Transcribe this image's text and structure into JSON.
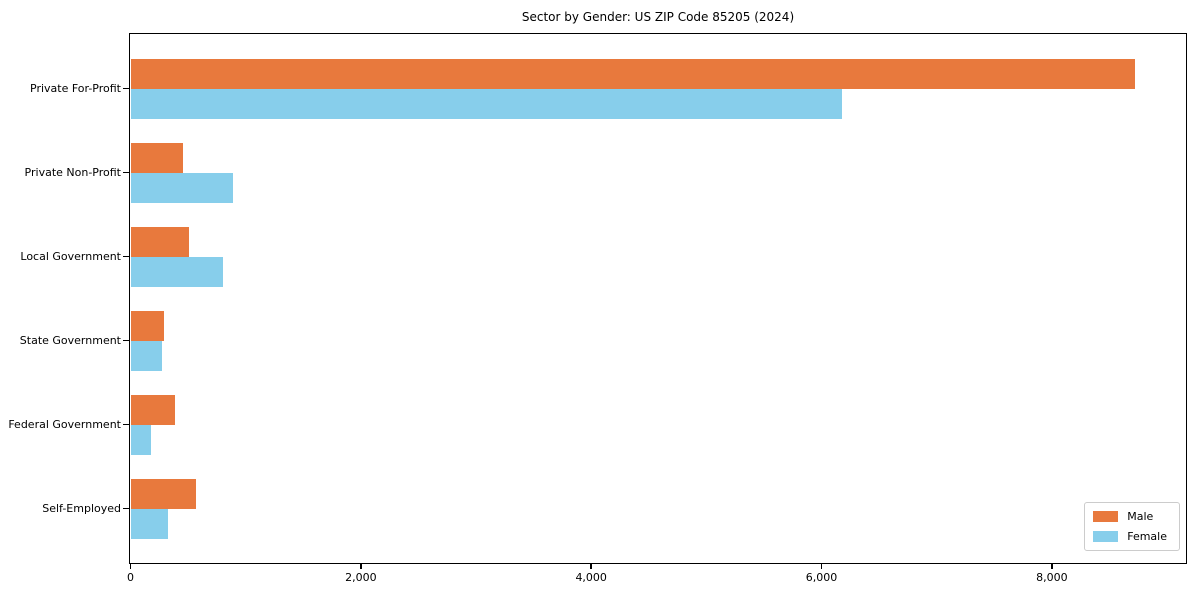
{
  "chart_data": {
    "type": "bar",
    "orientation": "horizontal",
    "title": "Sector by Gender: US ZIP Code 85205 (2024)",
    "categories": [
      "Private For-Profit",
      "Private Non-Profit",
      "Local Government",
      "State Government",
      "Federal Government",
      "Self-Employed"
    ],
    "series": [
      {
        "name": "Male",
        "color": "#e8793d",
        "values": [
          8720,
          450,
          500,
          290,
          380,
          565
        ]
      },
      {
        "name": "Female",
        "color": "#87ceeb",
        "values": [
          6170,
          885,
          800,
          270,
          175,
          320
        ]
      }
    ],
    "xlabel": "",
    "ylabel": "",
    "xlim": [
      0,
      9160
    ],
    "xticks": [
      0,
      2000,
      4000,
      6000,
      8000
    ],
    "xtick_labels": [
      "0",
      "2,000",
      "4,000",
      "6,000",
      "8,000"
    ],
    "grid": false,
    "legend": {
      "position": "lower right",
      "entries": [
        "Male",
        "Female"
      ]
    }
  },
  "colors": {
    "male_bar": "#e8793d",
    "female_bar": "#87ceeb",
    "axis_frame": "#000000",
    "legend_border": "#cccccc",
    "background": "#ffffff",
    "text": "#000000"
  }
}
